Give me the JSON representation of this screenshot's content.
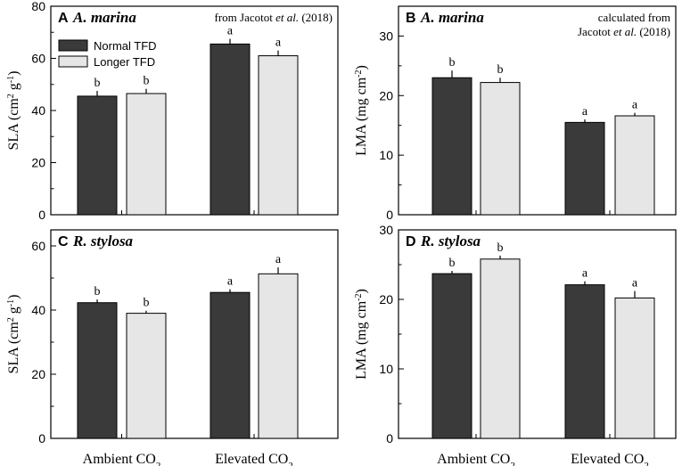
{
  "figure": {
    "categories": [
      "Ambient CO",
      "Elevated CO"
    ],
    "category_subscript": "2",
    "legend": [
      "Normal TFD",
      "Longer TFD"
    ],
    "colors": {
      "normal": "#3a3a3a",
      "longer": "#e6e6e6",
      "axis": "#000000"
    }
  },
  "chart_data": [
    {
      "type": "bar",
      "panel": "A",
      "species": "A. marina",
      "note_lines": [
        [
          "from Jacotot ",
          "et al.",
          " (2018)"
        ]
      ],
      "ylabel": {
        "main": "SLA (cm",
        "sup1": "2",
        "mid": " g",
        "sup2": "-1",
        "end": ")"
      },
      "ylim": [
        0,
        80
      ],
      "yticks": [
        0,
        20,
        40,
        60,
        80
      ],
      "categories": [
        "Ambient CO2",
        "Elevated CO2"
      ],
      "series": [
        {
          "name": "Normal TFD",
          "values": [
            45.5,
            65.5
          ],
          "errors": [
            2.0,
            2.0
          ],
          "letters": [
            "b",
            "a"
          ]
        },
        {
          "name": "Longer TFD",
          "values": [
            46.5,
            61.0
          ],
          "errors": [
            1.8,
            2.0
          ],
          "letters": [
            "b",
            "a"
          ]
        }
      ],
      "show_legend": true
    },
    {
      "type": "bar",
      "panel": "B",
      "species": "A. marina",
      "note_lines": [
        [
          "calculated from"
        ],
        [
          "Jacotot ",
          "et al.",
          " (2018)"
        ]
      ],
      "ylabel": {
        "main": "LMA (mg cm",
        "sup1": "-2",
        "mid": "",
        "sup2": "",
        "end": ")"
      },
      "ylim": [
        0,
        35
      ],
      "yticks": [
        0,
        10,
        20,
        30
      ],
      "categories": [
        "Ambient CO2",
        "Elevated CO2"
      ],
      "series": [
        {
          "name": "Normal TFD",
          "values": [
            23.0,
            15.5
          ],
          "errors": [
            1.2,
            0.5
          ],
          "letters": [
            "b",
            "a"
          ]
        },
        {
          "name": "Longer TFD",
          "values": [
            22.2,
            16.6
          ],
          "errors": [
            0.8,
            0.5
          ],
          "letters": [
            "b",
            "a"
          ]
        }
      ],
      "show_legend": false
    },
    {
      "type": "bar",
      "panel": "C",
      "species": "R. stylosa",
      "note_lines": [],
      "ylabel": {
        "main": "SLA (cm",
        "sup1": "2",
        "mid": " g",
        "sup2": "-1",
        "end": ")"
      },
      "ylim": [
        0,
        65
      ],
      "yticks": [
        0,
        20,
        40,
        60
      ],
      "categories": [
        "Ambient CO2",
        "Elevated CO2"
      ],
      "series": [
        {
          "name": "Normal TFD",
          "values": [
            42.3,
            45.5
          ],
          "errors": [
            1.0,
            1.0
          ],
          "letters": [
            "b",
            "a"
          ]
        },
        {
          "name": "Longer TFD",
          "values": [
            39.0,
            51.3
          ],
          "errors": [
            0.8,
            2.0
          ],
          "letters": [
            "b",
            "a"
          ]
        }
      ],
      "show_legend": false
    },
    {
      "type": "bar",
      "panel": "D",
      "species": "R. stylosa",
      "note_lines": [],
      "ylabel": {
        "main": "LMA (mg cm",
        "sup1": "-2",
        "mid": "",
        "sup2": "",
        "end": ")"
      },
      "ylim": [
        0,
        30
      ],
      "yticks": [
        0,
        10,
        20,
        30
      ],
      "categories": [
        "Ambient CO2",
        "Elevated CO2"
      ],
      "series": [
        {
          "name": "Normal TFD",
          "values": [
            23.7,
            22.1
          ],
          "errors": [
            0.4,
            0.5
          ],
          "letters": [
            "b",
            "a"
          ]
        },
        {
          "name": "Longer TFD",
          "values": [
            25.8,
            20.2
          ],
          "errors": [
            0.5,
            1.0
          ],
          "letters": [
            "b",
            "a"
          ]
        }
      ],
      "show_legend": false
    }
  ]
}
